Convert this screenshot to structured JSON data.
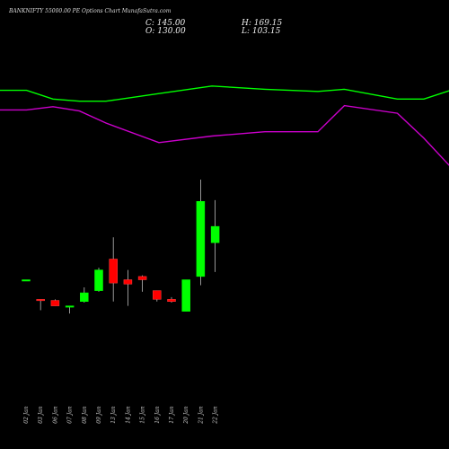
{
  "header": {
    "title": "BANKNIFTY 55000.00 PE Options Chart MunafaSutra.com",
    "o_label": "O: 130.00",
    "c_label": "C: 145.00",
    "h_label": "H: 169.15",
    "l_label": "L: 103.15"
  },
  "colors": {
    "up": "#00ff00",
    "down": "#ff0000",
    "ma_fast": "#00ff00",
    "ma_slow": "#cc00cc",
    "background": "#000000"
  },
  "chart_data": {
    "type": "candlestick",
    "categories": [
      "02 Jan",
      "03 Jan",
      "06 Jan",
      "07 Jan",
      "08 Jan",
      "09 Jan",
      "13 Jan",
      "14 Jan",
      "15 Jan",
      "16 Jan",
      "17 Jan",
      "20 Jan",
      "21 Jan",
      "22 Jan"
    ],
    "ohlc": [
      {
        "o": 96,
        "h": 96,
        "l": 96,
        "c": 96
      },
      {
        "o": 78,
        "h": 78,
        "l": 68,
        "c": 77
      },
      {
        "o": 77,
        "h": 78,
        "l": 72,
        "c": 72
      },
      {
        "o": 72,
        "h": 72,
        "l": 65,
        "c": 72
      },
      {
        "o": 76,
        "h": 89,
        "l": 75,
        "c": 84
      },
      {
        "o": 86,
        "h": 107,
        "l": 85,
        "c": 105
      },
      {
        "o": 115,
        "h": 135,
        "l": 76,
        "c": 93
      },
      {
        "o": 96,
        "h": 105,
        "l": 72,
        "c": 92
      },
      {
        "o": 99,
        "h": 100,
        "l": 85,
        "c": 96
      },
      {
        "o": 86,
        "h": 86,
        "l": 76,
        "c": 78
      },
      {
        "o": 78,
        "h": 80,
        "l": 75,
        "c": 76
      },
      {
        "o": 67,
        "h": 96,
        "l": 67,
        "c": 96
      },
      {
        "o": 99,
        "h": 188,
        "l": 91,
        "c": 168
      },
      {
        "o": 130,
        "h": 169.15,
        "l": 103.15,
        "c": 145
      }
    ],
    "ma_fast": [
      270,
      270,
      262,
      260,
      260,
      267,
      274,
      271,
      269,
      271,
      262,
      262,
      270,
      298,
      287
    ],
    "ma_slow": [
      252,
      252,
      255,
      251,
      240,
      222,
      228,
      232,
      232,
      256,
      249,
      226,
      200,
      218,
      190
    ],
    "ma_x_index": [
      0,
      1,
      2,
      3,
      4,
      6,
      8,
      10,
      12,
      13,
      15,
      16,
      17,
      18,
      19
    ],
    "ylim": [
      -10,
      320
    ]
  }
}
